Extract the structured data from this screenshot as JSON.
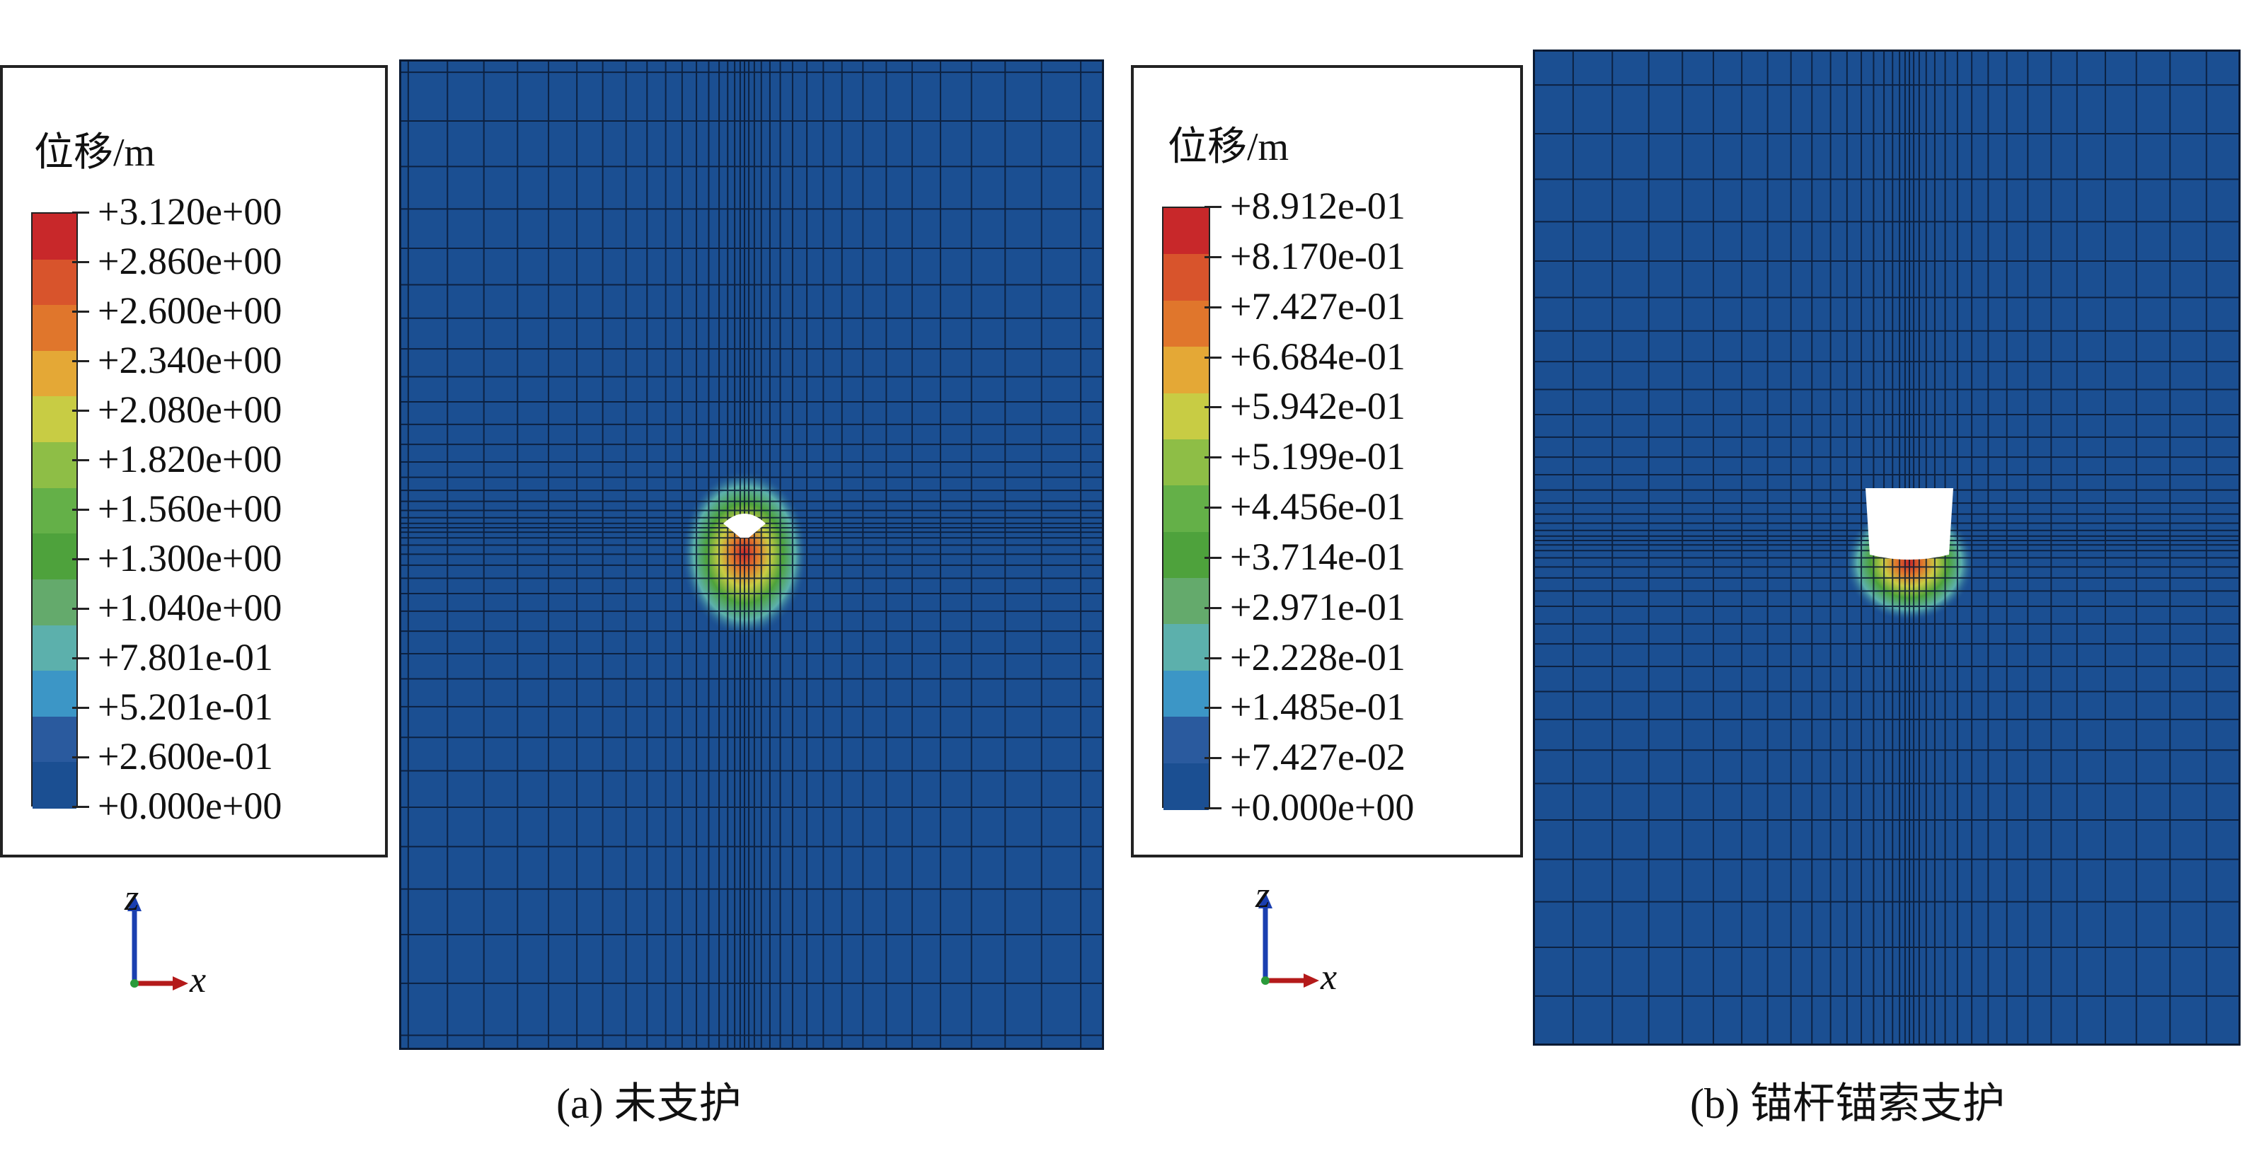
{
  "panels": [
    {
      "legend": {
        "title": "位移/m",
        "labels": [
          "+3.120e+00",
          "+2.860e+00",
          "+2.600e+00",
          "+2.340e+00",
          "+2.080e+00",
          "+1.820e+00",
          "+1.560e+00",
          "+1.300e+00",
          "+1.040e+00",
          "+7.801e-01",
          "+5.201e-01",
          "+2.600e-01",
          "+0.000e+00"
        ]
      },
      "axes": {
        "vertical": "z",
        "horizontal": "x"
      },
      "caption": "(a) 未支护"
    },
    {
      "legend": {
        "title": "位移/m",
        "labels": [
          "+8.912e-01",
          "+8.170e-01",
          "+7.427e-01",
          "+6.684e-01",
          "+5.942e-01",
          "+5.199e-01",
          "+4.456e-01",
          "+3.714e-01",
          "+2.971e-01",
          "+2.228e-01",
          "+1.485e-01",
          "+7.427e-02",
          "+0.000e+00"
        ]
      },
      "axes": {
        "vertical": "z",
        "horizontal": "x"
      },
      "caption": "(b) 锚杆锚索支护"
    }
  ],
  "colors": {
    "scale": [
      "#c8282a",
      "#d8542c",
      "#e0762c",
      "#e4a836",
      "#c8cc44",
      "#8ebe46",
      "#64b048",
      "#4ea23c",
      "#64aa6c",
      "#5cb0ac",
      "#3c96c6",
      "#2a5a9e",
      "#1b4f92"
    ],
    "mesh_background": "#1b4f92",
    "mesh_line": "#0a1a33",
    "axis_z": "#1a3fb0",
    "axis_x": "#b41a1a"
  }
}
